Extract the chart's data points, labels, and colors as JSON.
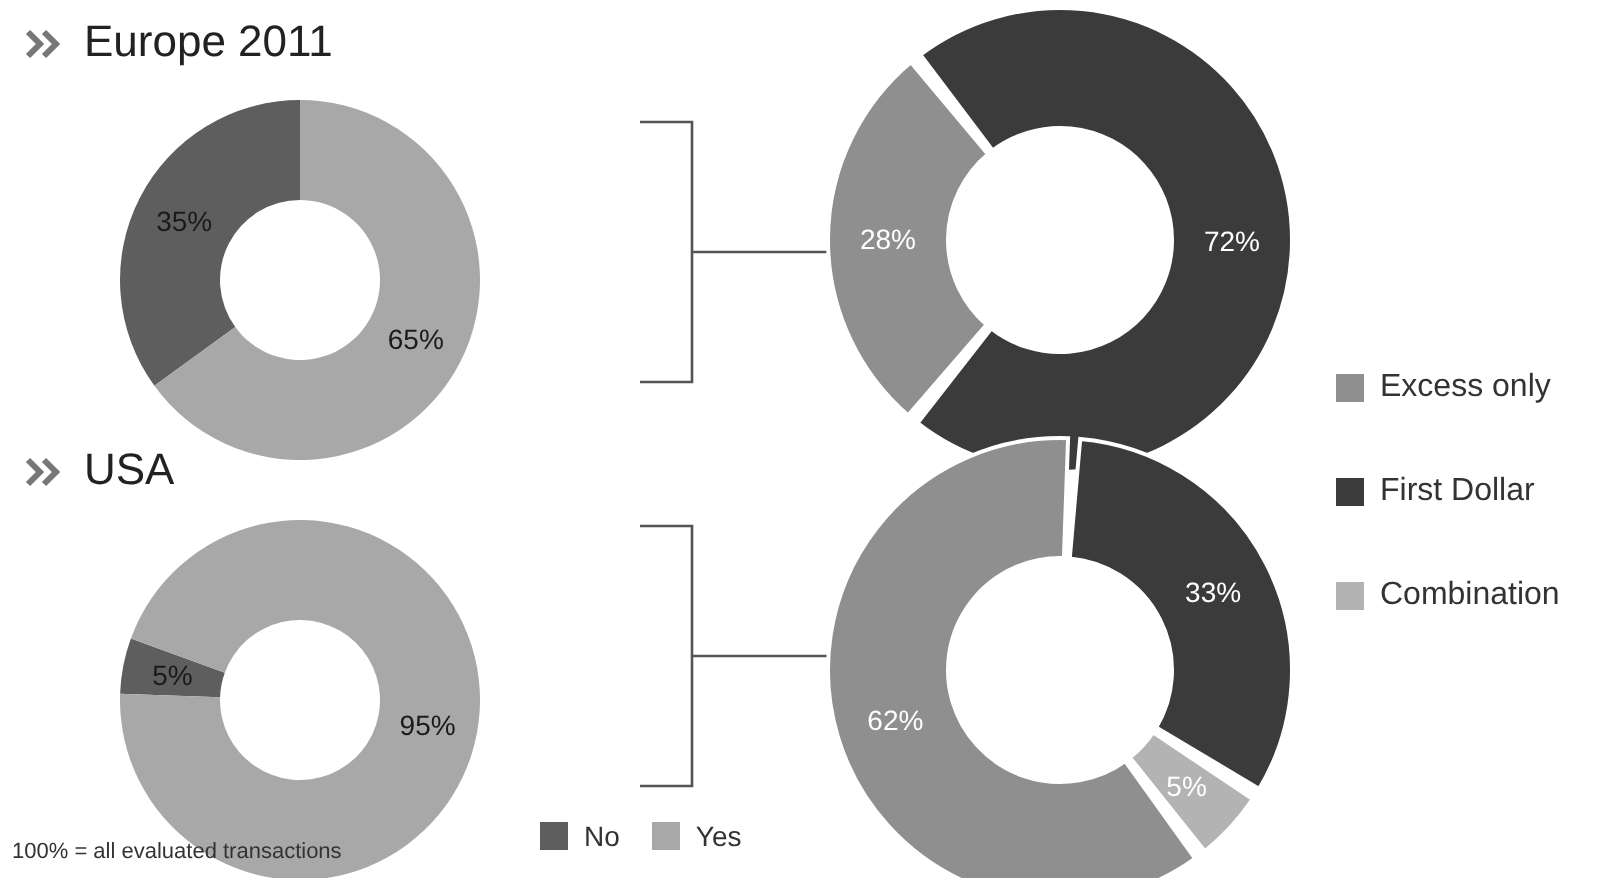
{
  "chart_data": [
    {
      "type": "donut",
      "title": "Europe 2011",
      "categories": [
        null,
        null
      ],
      "values": [
        35,
        65
      ],
      "colors": [
        "#5e5e5e",
        "#a8a8a8"
      ],
      "value_labels": [
        "35%",
        "65%"
      ]
    },
    {
      "type": "donut",
      "categories": [
        null,
        null
      ],
      "values": [
        28,
        72
      ],
      "colors": [
        "#8f8f8f",
        "#3b3b3b"
      ],
      "value_labels": [
        "28%",
        "72%"
      ]
    },
    {
      "type": "donut",
      "title": "USA",
      "categories": [
        "No",
        "Yes"
      ],
      "values": [
        5,
        95
      ],
      "colors": [
        "#5e5e5e",
        "#a8a8a8"
      ],
      "value_labels": [
        "5%",
        "95%"
      ],
      "legend": "bottom",
      "annotations": [
        "100% = all evaluated transactions"
      ]
    },
    {
      "type": "donut",
      "categories": [
        "Excess only",
        "Combination",
        "First Dollar"
      ],
      "values": [
        62,
        5,
        33
      ],
      "colors": [
        "#8f8f8f",
        "#b3b3b3",
        "#3b3b3b"
      ],
      "value_labels": [
        "62%",
        "5%",
        "33%"
      ],
      "legend": "right"
    }
  ]
}
